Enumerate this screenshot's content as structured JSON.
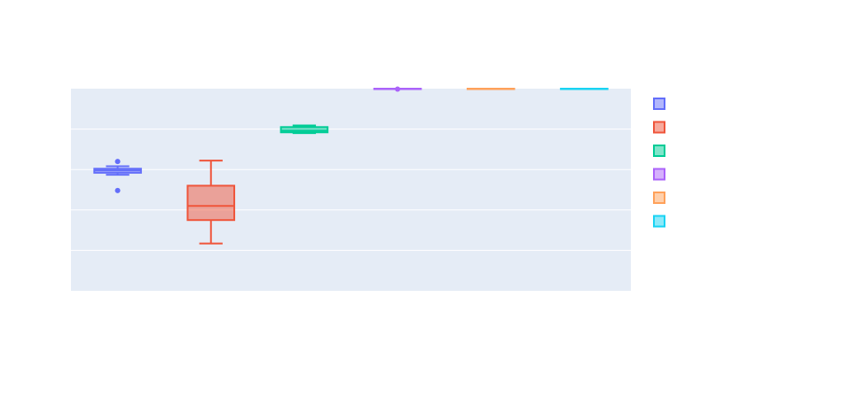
{
  "chart_data": {
    "type": "box",
    "title": "",
    "xlabel": "",
    "ylabel": "",
    "ylim": [
      0,
      5
    ],
    "grid": true,
    "legend_placement": "right",
    "series": [
      {
        "name": "",
        "color": "#636efa",
        "q1": 2.92,
        "median": 2.98,
        "q3": 3.02,
        "lowerfence": 2.87,
        "upperfence": 3.08,
        "outliers": [
          2.48,
          3.2
        ]
      },
      {
        "name": "",
        "color": "#ef553b",
        "q1": 1.75,
        "median": 2.1,
        "q3": 2.6,
        "lowerfence": 1.17,
        "upperfence": 3.22,
        "outliers": []
      },
      {
        "name": "",
        "color": "#00cc96",
        "q1": 3.92,
        "median": 3.96,
        "q3": 4.05,
        "lowerfence": 3.9,
        "upperfence": 4.09,
        "outliers": []
      },
      {
        "name": "",
        "color": "#ab63fa",
        "q1": 5.0,
        "median": 5.0,
        "q3": 5.0,
        "lowerfence": 5.0,
        "upperfence": 5.0,
        "outliers": [
          4.99
        ]
      },
      {
        "name": "",
        "color": "#ffa15a",
        "q1": 5.0,
        "median": 5.0,
        "q3": 5.0,
        "lowerfence": 5.0,
        "upperfence": 5.0,
        "outliers": []
      },
      {
        "name": "",
        "color": "#19d3f3",
        "q1": 5.0,
        "median": 5.0,
        "q3": 5.0,
        "lowerfence": 5.0,
        "upperfence": 5.0,
        "outliers": []
      }
    ]
  }
}
